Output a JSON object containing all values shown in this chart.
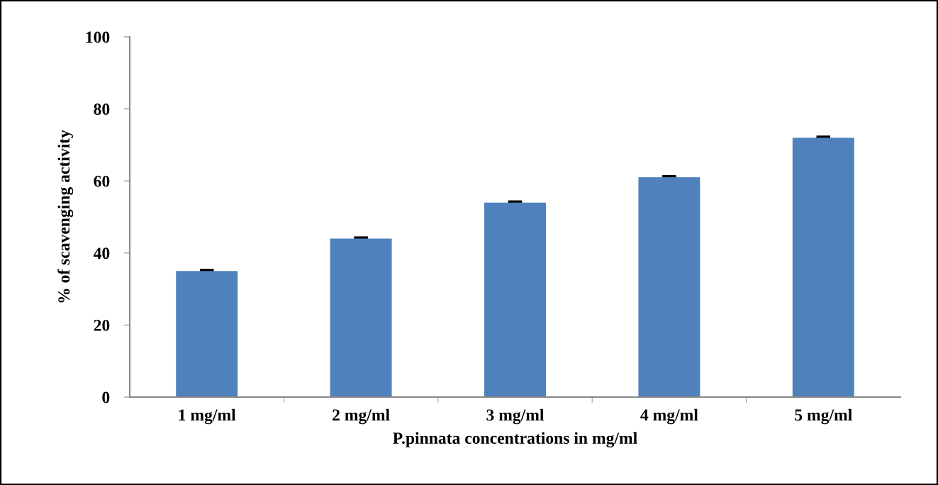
{
  "chart_data": {
    "type": "bar",
    "categories": [
      "1 mg/ml",
      "2 mg/ml",
      "3 mg/ml",
      "4 mg/ml",
      "5 mg/ml"
    ],
    "values": [
      35,
      44,
      54,
      61,
      72
    ],
    "errors": [
      0.2,
      0.2,
      0.2,
      0.2,
      0.2
    ],
    "color": "#4f81bd",
    "xlabel": "P.pinnata concentrations in mg/ml",
    "ylabel": "% of scavenging activity",
    "ylim": [
      0,
      100
    ],
    "yticks": [
      0,
      20,
      40,
      60,
      80,
      100
    ],
    "grid": false,
    "legend": false
  }
}
